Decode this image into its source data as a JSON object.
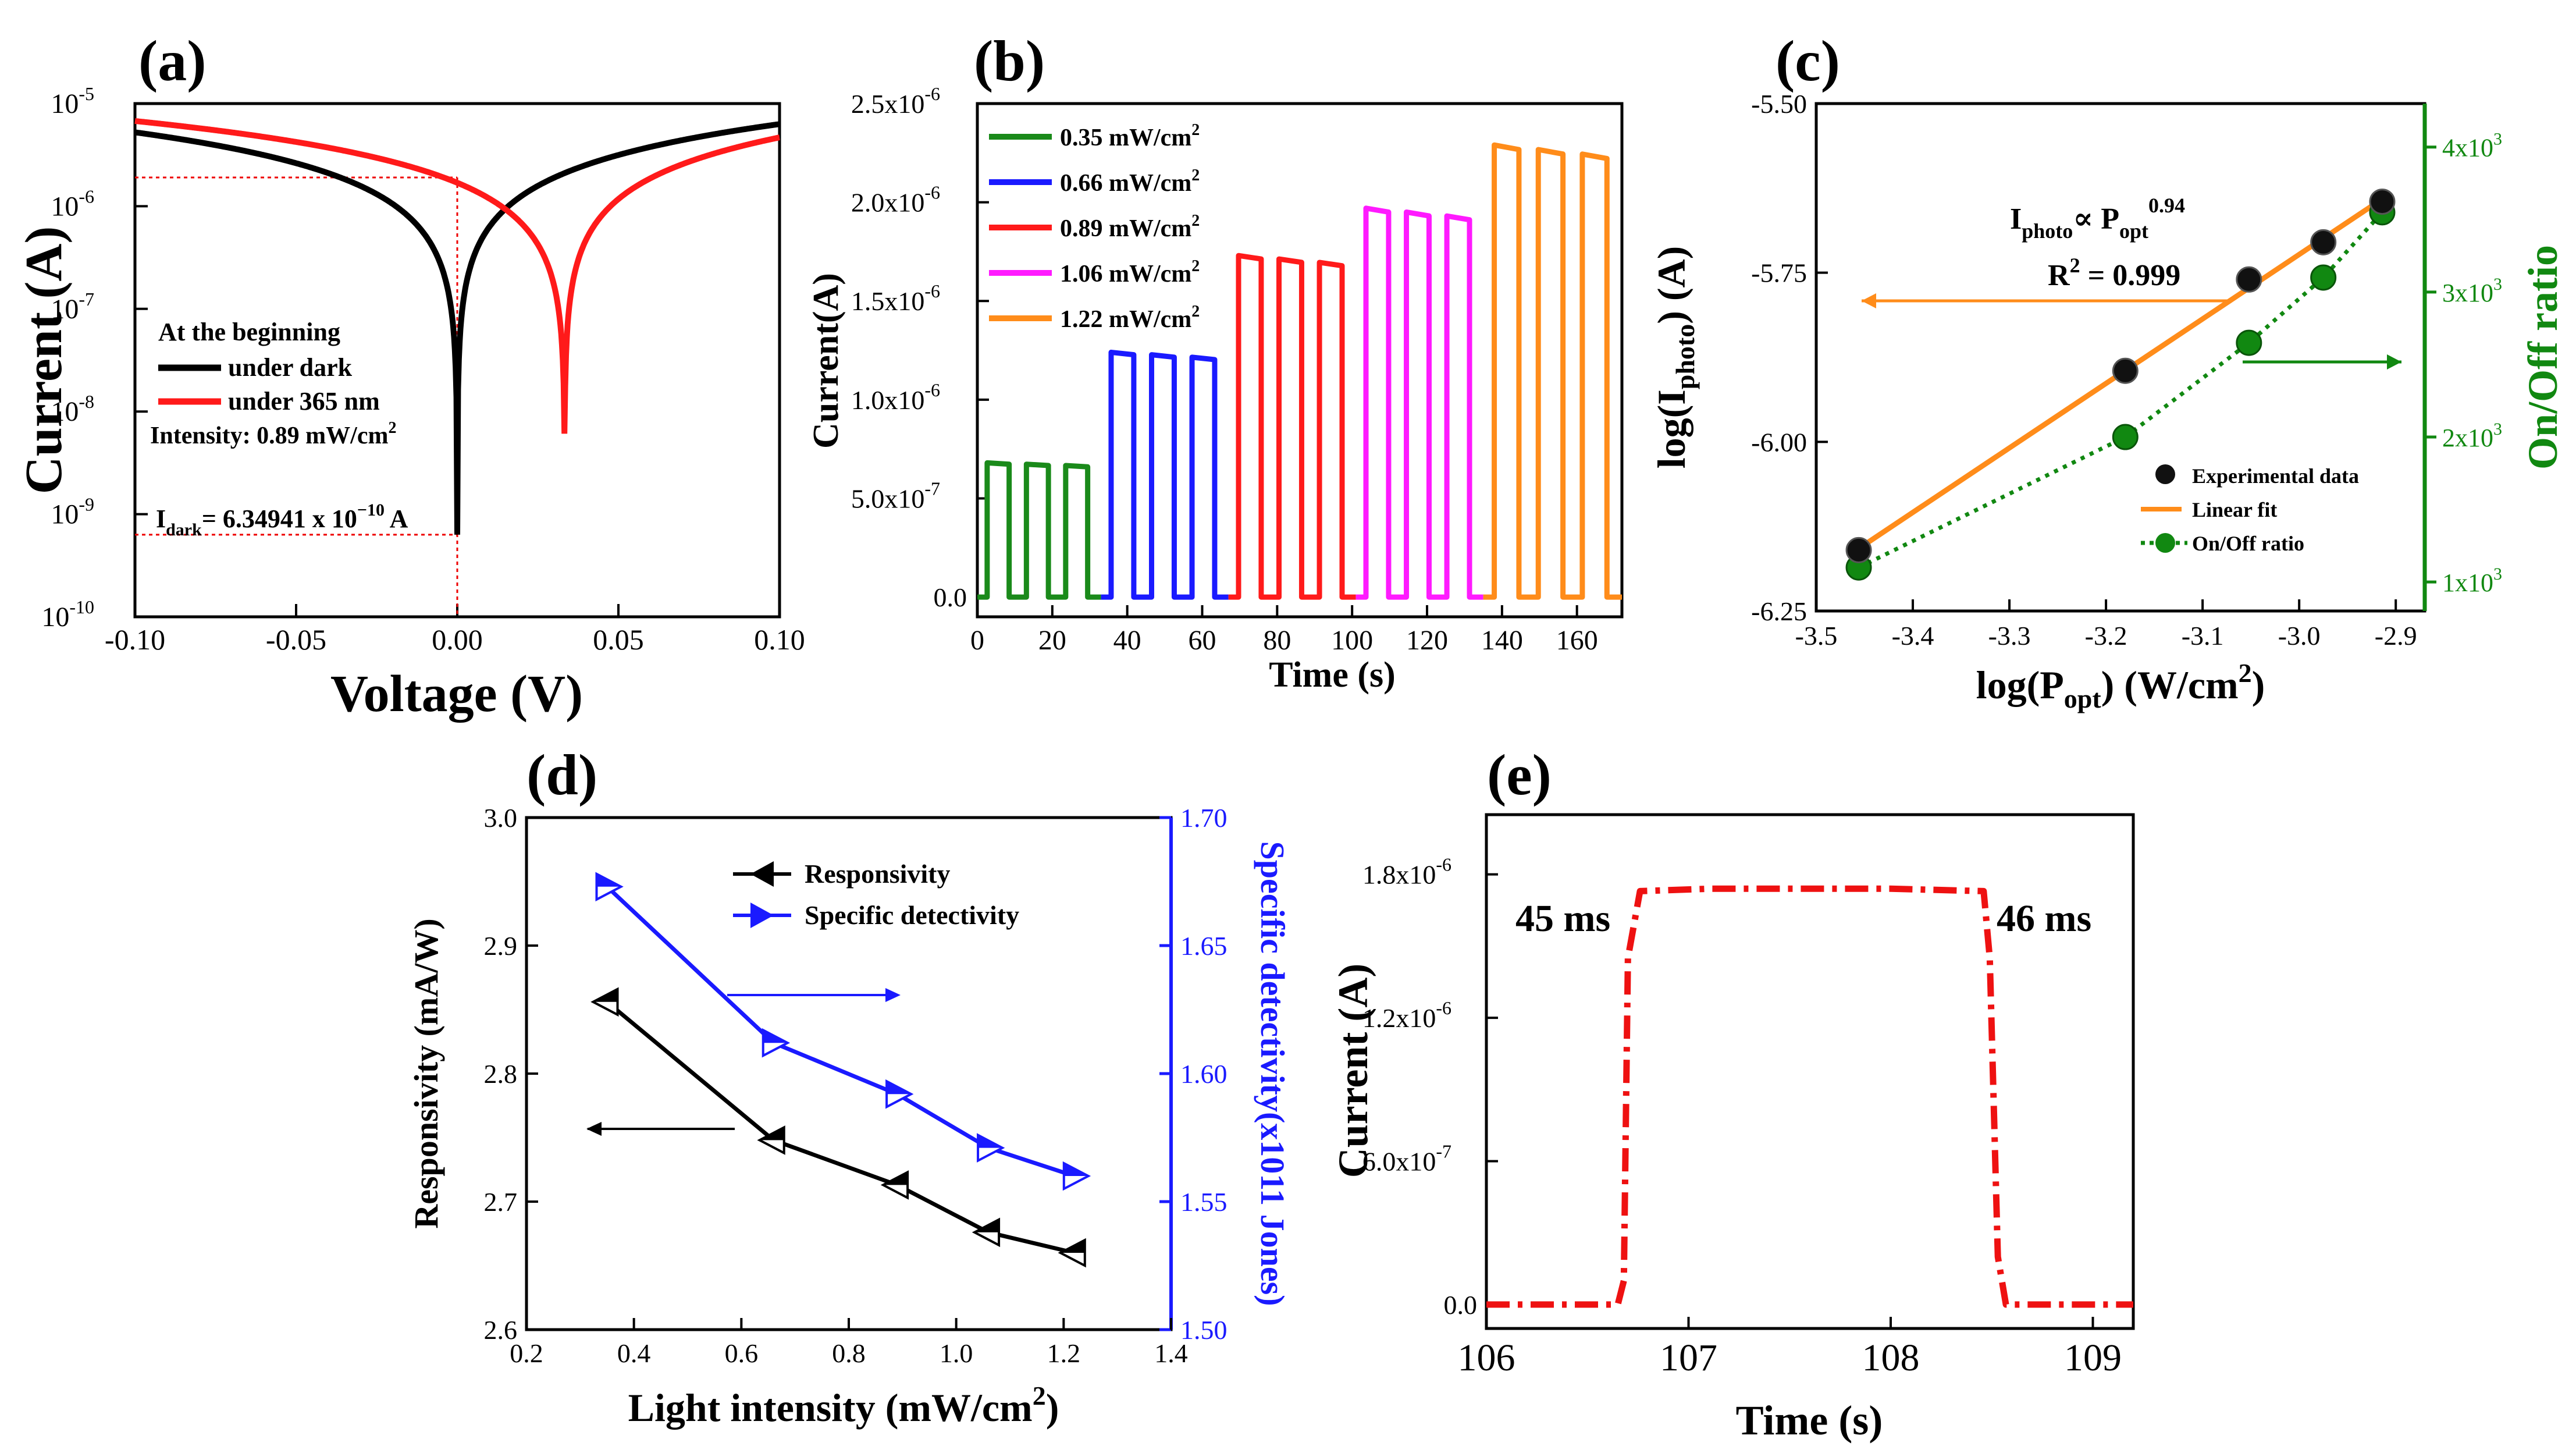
{
  "chart_data": [
    {
      "panel": "a",
      "type": "line",
      "label": "(a)",
      "xlabel": "Voltage (V)",
      "ylabel": "Current (A)",
      "xlim": [
        -0.1,
        0.1
      ],
      "ylim_log10": [
        -10,
        -5
      ],
      "xticks": [
        "-0.10",
        "-0.05",
        "0.00",
        "0.05",
        "0.10"
      ],
      "ytick_mantissa": "10",
      "ytick_exponents": [
        "-10",
        "-9",
        "-8",
        "-7",
        "-6",
        "-5"
      ],
      "legend_title": "At the beginning",
      "intensity_note_prefix": "Intensity: 0.89 mW/cm",
      "intensity_note_sup": "2",
      "idark_note": {
        "prefix": "I",
        "sub": "dark",
        "mid": "= 6.34941 x 10",
        "sup": "−10",
        "suffix": " A"
      },
      "series": [
        {
          "name": "under dark",
          "color": "#000000",
          "zero_v": 0.0,
          "log_at_xmin": -5.28,
          "log_at_xmax": -5.2,
          "log_floor": -9.2
        },
        {
          "name": "under 365 nm",
          "color": "#ff1a1a",
          "zero_v": 0.0333,
          "log_at_xmin": -5.17,
          "log_at_xmax": -5.33,
          "log_floor": -8.45
        }
      ],
      "guides": {
        "v_dark": 0.0,
        "current_at_0V_under_light_log10": -5.72,
        "current_dark_log10": -9.2
      }
    },
    {
      "panel": "b",
      "type": "line",
      "label": "(b)",
      "xlabel": "Time (s)",
      "ylabel": "Current(A)",
      "xlim": [
        0,
        172
      ],
      "ylim": [
        -1e-07,
        2.5e-06
      ],
      "xticks": [
        "0",
        "20",
        "40",
        "60",
        "80",
        "100",
        "120",
        "140",
        "160"
      ],
      "yticks": [
        "0.0",
        "5.0x10",
        "1.0x10",
        "1.5x10",
        "2.0x10",
        "2.5x10"
      ],
      "ytick_sups": [
        "",
        "-7",
        "-6",
        "-6",
        "-6",
        "-6"
      ],
      "ytick_values": [
        0,
        5e-07,
        1e-06,
        1.5e-06,
        2e-06,
        2.5e-06
      ],
      "legend_unit": "mW/cm",
      "legend_sup": "2",
      "series": [
        {
          "name": "0.35 ",
          "color": "#1a8a1a",
          "on_level": 6.8e-07,
          "t_start": 0,
          "t_end": 33
        },
        {
          "name": "0.66 ",
          "color": "#1a1aff",
          "on_level": 1.24e-06,
          "t_start": 33,
          "t_end": 67
        },
        {
          "name": "0.89 ",
          "color": "#ff1a1a",
          "on_level": 1.73e-06,
          "t_start": 67,
          "t_end": 101
        },
        {
          "name": "1.06 ",
          "color": "#ff1aff",
          "on_level": 1.97e-06,
          "t_start": 101,
          "t_end": 135
        },
        {
          "name": "1.22 ",
          "color": "#ff8c1a",
          "on_level": 2.29e-06,
          "t_start": 135,
          "t_end": 172
        }
      ]
    },
    {
      "panel": "c",
      "type": "scatter",
      "label": "(c)",
      "xlabel_base": "log(P",
      "xlabel_sub": "opt",
      "xlabel_end": ") (W/cm",
      "xlabel_sup": "2",
      "xlabel_close": ")",
      "ylabel_base": "log(I",
      "ylabel_sub": "photo",
      "ylabel_end": ") (A)",
      "y2label": "On/Off ratio",
      "xlim": [
        -3.5,
        -2.87
      ],
      "ylim": [
        -6.25,
        -5.5
      ],
      "y2lim": [
        800,
        4300
      ],
      "xticks": [
        "-3.5",
        "-3.4",
        "-3.3",
        "-3.2",
        "-3.1",
        "-3.0",
        "-2.9"
      ],
      "yticks": [
        "-6.25",
        "-6.00",
        "-5.75",
        "-5.50"
      ],
      "y2ticks": [
        "1x10",
        "2x10",
        "3x10",
        "4x10"
      ],
      "y2tick_sup": "3",
      "log_p_opt": [
        -3.456,
        -3.18,
        -3.052,
        -2.975,
        -2.914
      ],
      "log_i_photo": [
        -6.16,
        -5.895,
        -5.76,
        -5.705,
        -5.645
      ],
      "on_off_ratio": [
        1100,
        2000,
        2650,
        3100,
        3550
      ],
      "legend": [
        "Experimental data",
        "Linear fit",
        "On/Off ratio"
      ],
      "fit_relation": {
        "lhs": "I",
        "lhs_sub": "photo",
        "mid": "∝ P",
        "mid_sub": "opt",
        "exp": "0.94"
      },
      "fit_r2": {
        "prefix": "R",
        "sup": "2",
        "suffix": " = 0.999"
      },
      "colors": {
        "fit": "#ff8c1a",
        "ratio": "#118811",
        "points": "#000000"
      }
    },
    {
      "panel": "d",
      "type": "line",
      "label": "(d)",
      "xlabel": "Light intensity (mW/cm",
      "xlabel_sup": "2",
      "xlabel_close": ")",
      "ylabel": "Responsivity (mA/W)",
      "y2label": "Specific detectivity(x1011 Jones)",
      "xlim": [
        0.2,
        1.4
      ],
      "ylim": [
        2.6,
        3.0
      ],
      "y2lim": [
        1.5,
        1.7
      ],
      "xticks": [
        "0.2",
        "0.4",
        "0.6",
        "0.8",
        "1.0",
        "1.2",
        "1.4"
      ],
      "yticks": [
        "2.6",
        "2.7",
        "2.8",
        "2.9",
        "3.0"
      ],
      "y2ticks": [
        "1.50",
        "1.55",
        "1.60",
        "1.65",
        "1.70"
      ],
      "x": [
        0.35,
        0.66,
        0.89,
        1.06,
        1.22
      ],
      "series": [
        {
          "name": "Responsivity",
          "color": "#000000",
          "values": [
            2.856,
            2.748,
            2.713,
            2.676,
            2.66
          ],
          "axis": "left"
        },
        {
          "name": "Specific detectivity",
          "color": "#1a1aff",
          "values": [
            1.673,
            1.612,
            1.592,
            1.571,
            1.56
          ],
          "axis": "right"
        }
      ]
    },
    {
      "panel": "e",
      "type": "line",
      "label": "(e)",
      "xlabel": "Time (s)",
      "ylabel": "Current (A)",
      "xlim": [
        106,
        109.2
      ],
      "ylim": [
        -1e-07,
        2.05e-06
      ],
      "xticks": [
        "106",
        "107",
        "108",
        "109"
      ],
      "yticks": [
        "0.0",
        "6.0x10",
        "1.2x10",
        "1.8x10"
      ],
      "ytick_sups": [
        "",
        "-7",
        "-6",
        "-6"
      ],
      "ytick_values": [
        0,
        6e-07,
        1.2e-06,
        1.8e-06
      ],
      "rise_label": "45 ms",
      "fall_label": "46 ms",
      "color": "#ee1111",
      "points": [
        [
          106.0,
          0.0
        ],
        [
          106.65,
          0.0
        ],
        [
          106.68,
          1e-07
        ],
        [
          106.7,
          1.45e-06
        ],
        [
          106.76,
          1.73e-06
        ],
        [
          107.1,
          1.74e-06
        ],
        [
          108.0,
          1.74e-06
        ],
        [
          108.46,
          1.73e-06
        ],
        [
          108.49,
          1.45e-06
        ],
        [
          108.53,
          2e-07
        ],
        [
          108.57,
          0.0
        ],
        [
          109.2,
          0.0
        ]
      ]
    }
  ]
}
